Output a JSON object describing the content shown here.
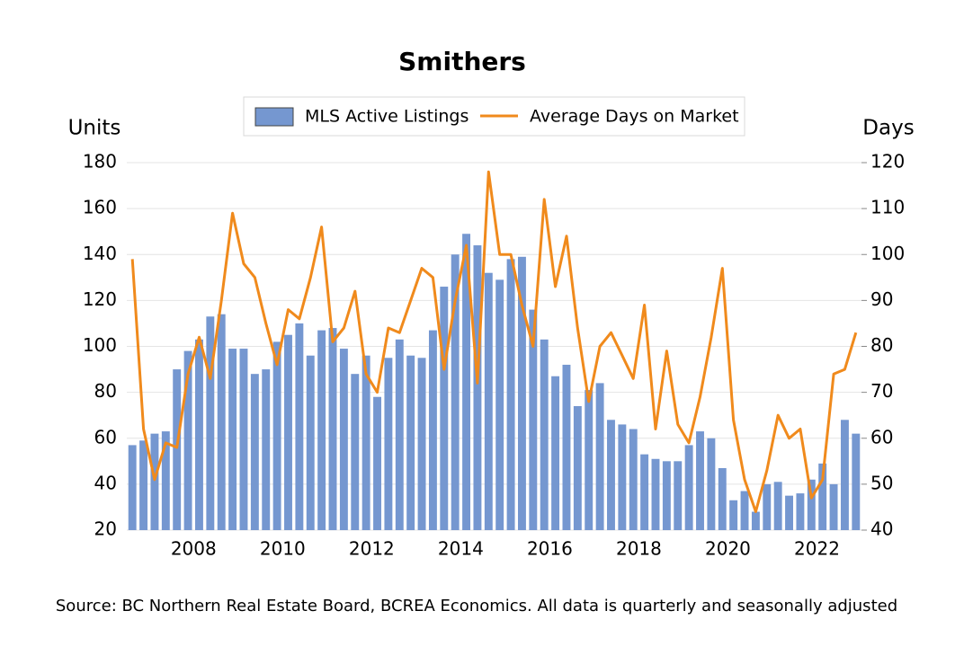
{
  "chart_data": {
    "type": "bar-line",
    "title": "Smithers",
    "y_label": "Units",
    "y2_label": "Days",
    "source": "Source: BC Northern Real Estate Board, BCREA Economics. All data is quarterly and seasonally adjusted",
    "categories": [
      null,
      null,
      null,
      null,
      null,
      null,
      "2008",
      null,
      null,
      null,
      null,
      null,
      null,
      null,
      "2010",
      null,
      null,
      null,
      null,
      null,
      null,
      null,
      "2012",
      null,
      null,
      null,
      null,
      null,
      null,
      null,
      "2014",
      null,
      null,
      null,
      null,
      null,
      null,
      null,
      "2016",
      null,
      null,
      null,
      null,
      null,
      null,
      null,
      "2018",
      null,
      null,
      null,
      null,
      null,
      null,
      null,
      "2020",
      null,
      null,
      null,
      null,
      null,
      null,
      null,
      "2022",
      null,
      null,
      null
    ],
    "series": [
      {
        "name": "MLS Active Listings",
        "color": "#7597d0",
        "kind": "bar",
        "values": [
          57,
          59,
          62,
          63,
          90,
          98,
          103,
          113,
          114,
          99,
          99,
          88,
          90,
          102,
          105,
          110,
          96,
          107,
          108,
          99,
          88,
          96,
          78,
          95,
          103,
          96,
          95,
          107,
          126,
          140,
          149,
          144,
          132,
          129,
          138,
          139,
          116,
          103,
          87,
          92,
          74,
          81,
          84,
          68,
          66,
          64,
          53,
          51,
          50,
          50,
          57,
          63,
          60,
          47,
          33,
          37,
          28,
          40,
          41,
          35,
          36,
          42,
          49,
          40,
          68,
          62
        ]
      },
      {
        "name": "Average Days on Market",
        "color": "#f08a1c",
        "kind": "line",
        "axis": "y2",
        "values": [
          99,
          62,
          51,
          59,
          58,
          74,
          82,
          73,
          90,
          109,
          98,
          95,
          85,
          76,
          88,
          86,
          95,
          106,
          81,
          84,
          92,
          74,
          70,
          84,
          83,
          90,
          97,
          95,
          75,
          90,
          102,
          72,
          118,
          100,
          100,
          89,
          80,
          112,
          93,
          104,
          84,
          68,
          80,
          83,
          78,
          73,
          89,
          62,
          79,
          63,
          59,
          69,
          82,
          97,
          64,
          51,
          44,
          53,
          65,
          60,
          62,
          47,
          51,
          74,
          75,
          83
        ]
      }
    ],
    "ylim": [
      20,
      180
    ],
    "yticks": [
      20,
      40,
      60,
      80,
      100,
      120,
      140,
      160,
      180
    ],
    "y2lim": [
      40,
      120
    ],
    "y2ticks": [
      40,
      50,
      60,
      70,
      80,
      90,
      100,
      110,
      120
    ],
    "grid": true,
    "legend": "top"
  }
}
